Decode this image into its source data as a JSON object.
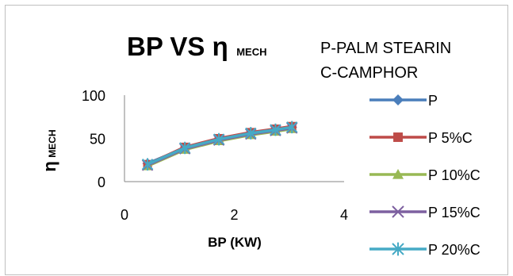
{
  "chart_data": {
    "type": "line",
    "title": "BP VS η",
    "title_subscript": "MECH",
    "annotations": [
      "P-PALM STEARIN",
      "C-CAMPHOR"
    ],
    "xlabel": "BP (KW)",
    "ylabel": "η",
    "ylabel_subscript": "MECH",
    "xlim": [
      0,
      4
    ],
    "ylim": [
      0,
      100
    ],
    "xticks": [
      "0",
      "2",
      "4"
    ],
    "yticks": [
      "0",
      "50",
      "100"
    ],
    "grid": false,
    "legend_position": "right",
    "x": [
      0.42,
      1.1,
      1.72,
      2.3,
      2.75,
      3.05
    ],
    "series": [
      {
        "name": "P",
        "color": "#4a7ebb",
        "marker": "diamond",
        "values": [
          21,
          39,
          49,
          56,
          60,
          63
        ]
      },
      {
        "name": "P 5%C",
        "color": "#be4b48",
        "marker": "square",
        "values": [
          20,
          40,
          50,
          57,
          61,
          64
        ]
      },
      {
        "name": "P 10%C",
        "color": "#98b954",
        "marker": "triangle",
        "values": [
          18,
          37,
          47,
          54,
          58,
          61
        ]
      },
      {
        "name": "P 15%C",
        "color": "#7d60a0",
        "marker": "x",
        "values": [
          19,
          38,
          48,
          55,
          59,
          62
        ]
      },
      {
        "name": "P 20%C",
        "color": "#46aac5",
        "marker": "star",
        "values": [
          20,
          39,
          49,
          56,
          60,
          63
        ]
      }
    ]
  }
}
